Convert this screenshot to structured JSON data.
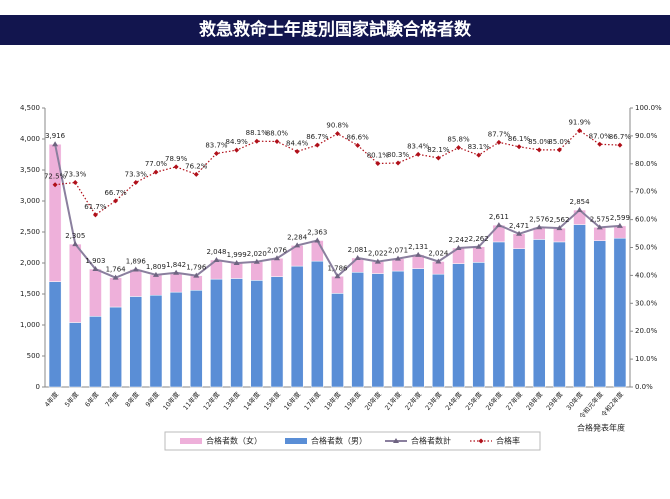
{
  "chart_data": {
    "type": "bar",
    "stacked": true,
    "title": "救急救命士年度別国家試験合格者数",
    "x_label": "合格発表年度",
    "categories": [
      "4年度",
      "5年度",
      "6年度",
      "7年度",
      "8年度",
      "9年度",
      "10年度",
      "11年度",
      "12年度",
      "13年度",
      "14年度",
      "15年度",
      "16年度",
      "17年度",
      "18年度",
      "19年度",
      "20年度",
      "21年度",
      "22年度",
      "23年度",
      "24年度",
      "25年度",
      "26年度",
      "27年度",
      "28年度",
      "29年度",
      "30年度",
      "令和元年度",
      "令和2年度"
    ],
    "series": [
      {
        "name": "合格者数（女）",
        "color": "#eeb0da",
        "values": [
          2216,
          1265,
          763,
          474,
          436,
          329,
          312,
          236,
          308,
          249,
          300,
          296,
          334,
          333,
          276,
          231,
          192,
          201,
          221,
          204,
          252,
          252,
          271,
          241,
          196,
          222,
          234,
          215,
          199
        ]
      },
      {
        "name": "合格者数（男）",
        "color": "#5a8ed6",
        "values": [
          1700,
          1040,
          1140,
          1290,
          1460,
          1480,
          1530,
          1560,
          1740,
          1750,
          1720,
          1780,
          1950,
          2030,
          1510,
          1850,
          1830,
          1870,
          1910,
          1820,
          1990,
          2010,
          2340,
          2230,
          2380,
          2340,
          2620,
          2360,
          2400
        ]
      },
      {
        "name": "合格者数計",
        "color": "#8a7f9e",
        "type": "line",
        "values": [
          3916,
          2305,
          1903,
          1764,
          1896,
          1809,
          1842,
          1796,
          2048,
          1999,
          2020,
          2076,
          2284,
          2363,
          1786,
          2081,
          2022,
          2071,
          2131,
          2024,
          2242,
          2262,
          2611,
          2471,
          2576,
          2562,
          2854,
          2575,
          2599
        ],
        "value_labels": [
          "3,916",
          "2,305",
          "1,903",
          "1,764",
          "1,896",
          "1,809",
          "1,842",
          "1,796",
          "2,048",
          "1,999",
          "2,020",
          "2,076",
          "2,284",
          "2,363",
          "1,786",
          "2,081",
          "2,022",
          "2,071",
          "2,131",
          "2,024",
          "2,242",
          "2,262",
          "2,611",
          "2,471",
          "2,576",
          "2,562",
          "2,854",
          "2,575",
          "2,599"
        ]
      },
      {
        "name": "合格率",
        "color": "#b0101a",
        "type": "line",
        "dotted": true,
        "axis": "y2",
        "values": [
          72.5,
          73.3,
          61.7,
          66.7,
          73.3,
          77.0,
          78.9,
          76.2,
          83.7,
          84.9,
          88.1,
          88.0,
          84.4,
          86.7,
          90.8,
          86.6,
          80.1,
          80.3,
          83.4,
          82.1,
          85.8,
          83.1,
          87.7,
          86.1,
          85.0,
          85.0,
          91.9,
          87.0,
          86.7
        ],
        "value_labels": [
          "72.5%",
          "73.3%",
          "61.7%",
          "66.7%",
          "73.3%",
          "77.0%",
          "78.9%",
          "76.2%",
          "83.7%",
          "84.9%",
          "88.1%",
          "88.0%",
          "84.4%",
          "86.7%",
          "90.8%",
          "86.6%",
          "80.1%",
          "80.3%",
          "83.4%",
          "82.1%",
          "85.8%",
          "83.1%",
          "87.7%",
          "86.1%",
          "85.0%",
          "85.0%",
          "91.9%",
          "87.0%",
          "86.7%"
        ]
      }
    ],
    "ylim": [
      0,
      4500
    ],
    "yticks": [
      0,
      500,
      {
        "value": 1000,
        "label": "1,000"
      },
      {
        "value": 1500,
        "label": "1,500"
      },
      {
        "value": 2000,
        "label": "2,000"
      },
      {
        "value": 2500,
        "label": "2,500"
      },
      {
        "value": 3000,
        "label": "3,000"
      },
      {
        "value": 3500,
        "label": "3,500"
      },
      {
        "value": 4000,
        "label": "4,000"
      },
      {
        "value": 4500,
        "label": "4,500"
      }
    ],
    "y2lim": [
      0,
      100
    ],
    "y2ticks": [
      {
        "value": 0,
        "label": "0.0%"
      },
      {
        "value": 10,
        "label": "10.0%"
      },
      {
        "value": 20,
        "label": "20.0%"
      },
      {
        "value": 30,
        "label": "30.0%"
      },
      {
        "value": 40,
        "label": "40.0%"
      },
      {
        "value": 50,
        "label": "50.0%"
      },
      {
        "value": 60,
        "label": "60.0%"
      },
      {
        "value": 70,
        "label": "70.0%"
      },
      {
        "value": 80,
        "label": "80.0%"
      },
      {
        "value": 90,
        "label": "90.0%"
      },
      {
        "value": 100,
        "label": "100.0%"
      }
    ],
    "grid": false
  }
}
